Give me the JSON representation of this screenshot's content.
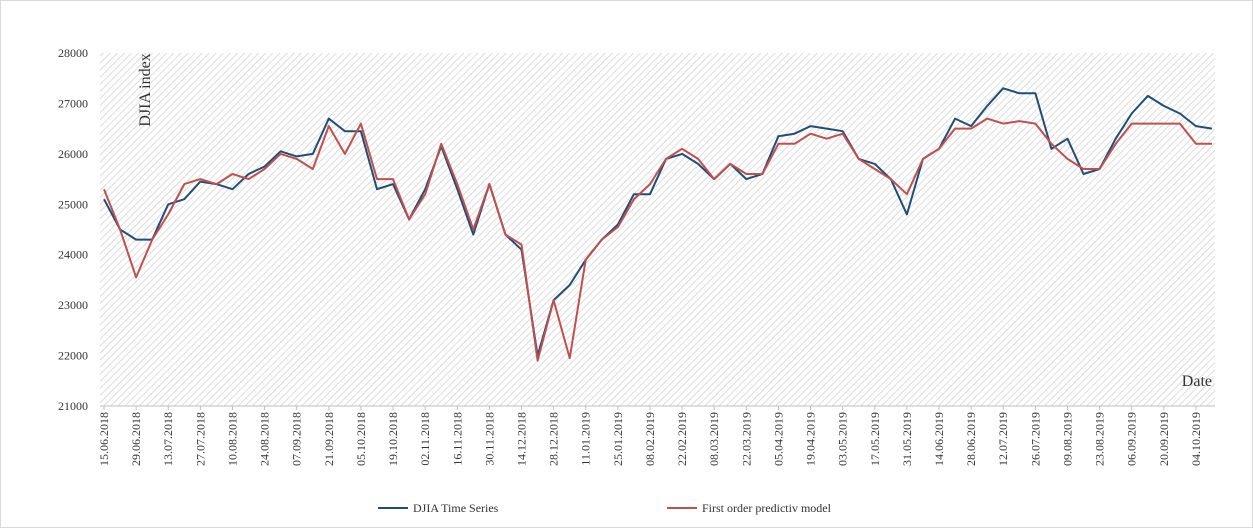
{
  "chart_data": {
    "type": "line",
    "y_label": "DJIA index",
    "x_label": "Date",
    "categories": [
      "15.06.2018",
      null,
      "29.06.2018",
      null,
      "13.07.2018",
      null,
      "27.07.2018",
      null,
      "10.08.2018",
      null,
      "24.08.2018",
      null,
      "07.09.2018",
      null,
      "21.09.2018",
      null,
      "05.10.2018",
      null,
      "19.10.2018",
      null,
      "02.11.2018",
      null,
      "16.11.2018",
      null,
      "30.11.2018",
      null,
      "14.12.2018",
      null,
      "28.12.2018",
      null,
      "11.01.2019",
      null,
      "25.01.2019",
      null,
      "08.02.2019",
      null,
      "22.02.2019",
      null,
      "08.03.2019",
      null,
      "22.03.2019",
      null,
      "05.04.2019",
      null,
      "19.04.2019",
      null,
      "03.05.2019",
      null,
      "17.05.2019",
      null,
      "31.05.2019",
      null,
      "14.06.2019",
      null,
      "28.06.2019",
      null,
      "12.07.2019",
      null,
      "26.07.2019",
      null,
      "09.08.2019",
      null,
      "23.08.2019",
      null,
      "06.09.2019",
      null,
      "20.09.2019",
      null,
      "04.10.2019",
      null
    ],
    "series": [
      {
        "name": "DJIA Time Series",
        "color": "#1f4e79",
        "values": [
          25100,
          24500,
          24300,
          24300,
          25000,
          25100,
          25450,
          25400,
          25300,
          25600,
          25750,
          26050,
          25950,
          26000,
          26700,
          26450,
          26450,
          25300,
          25400,
          24700,
          25300,
          26150,
          25300,
          24400,
          25400,
          24400,
          24100,
          22000,
          23100,
          23400,
          23900,
          24300,
          24600,
          25200,
          25200,
          25900,
          26000,
          25800,
          25500,
          25800,
          25500,
          25600,
          26350,
          26400,
          26550,
          26500,
          26450,
          25900,
          25800,
          25500,
          24800,
          25900,
          26100,
          26700,
          26550,
          26950,
          27300,
          27200,
          27200,
          26100,
          26300,
          25600,
          25700,
          26300,
          26800,
          27150,
          26950,
          26800,
          26550,
          26500
        ]
      },
      {
        "name": "First order predictiv model",
        "color": "#c0504d",
        "values": [
          25300,
          24500,
          23550,
          24300,
          24800,
          25400,
          25500,
          25400,
          25600,
          25500,
          25700,
          26000,
          25900,
          25700,
          26550,
          26000,
          26600,
          25500,
          25500,
          24700,
          25200,
          26200,
          25400,
          24500,
          25400,
          24400,
          24200,
          21900,
          23100,
          21950,
          23900,
          24300,
          24550,
          25100,
          25400,
          25900,
          26100,
          25900,
          25500,
          25800,
          25600,
          25600,
          26200,
          26200,
          26400,
          26300,
          26400,
          25900,
          25700,
          25500,
          25200,
          25900,
          26100,
          26500,
          26500,
          26700,
          26600,
          26650,
          26600,
          26200,
          25900,
          25700,
          25700,
          26200,
          26600,
          26600,
          26600,
          26600,
          26200,
          26200
        ]
      }
    ],
    "ylim": [
      21000,
      28000
    ],
    "yticks": [
      21000,
      22000,
      23000,
      24000,
      25000,
      26000,
      27000,
      28000
    ]
  }
}
